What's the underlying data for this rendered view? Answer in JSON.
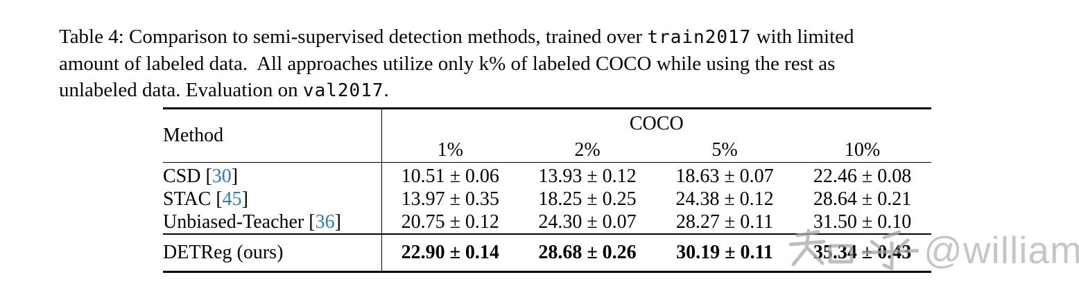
{
  "caption": {
    "line1": {
      "a": "Table 4: Comparison to semi-supervised detection methods, trained over ",
      "code": "train2017",
      "b": " with limited"
    },
    "line2": "amount of labeled data.  All approaches utilize only k% of labeled COCO while using the rest as",
    "line3": {
      "a": "unlabeled data. Evaluation on ",
      "code": "val2017",
      "b": "."
    }
  },
  "table": {
    "headers": {
      "method": "Method",
      "group": "COCO",
      "cols": [
        "1%",
        "2%",
        "5%",
        "10%"
      ]
    },
    "bracket_open": " [",
    "bracket_close": "]",
    "rows": [
      {
        "method": "CSD",
        "ref": "30",
        "values": [
          "10.51 ± 0.06",
          "13.93 ± 0.12",
          "18.63 ± 0.07",
          "22.46 ± 0.08"
        ]
      },
      {
        "method": "STAC",
        "ref": "45",
        "values": [
          "13.97 ± 0.35",
          "18.25 ± 0.25",
          "24.38 ± 0.12",
          "28.64 ± 0.21"
        ]
      },
      {
        "method": "Unbiased-Teacher",
        "ref": "36",
        "values": [
          "20.75 ± 0.12",
          "24.30 ± 0.07",
          "28.27 ± 0.11",
          "31.50 ± 0.10"
        ]
      }
    ],
    "ours_row": {
      "method": "DETReg (ours)",
      "values": [
        "22.90 ± 0.14",
        "28.68 ± 0.26",
        "30.19 ± 0.11",
        "35.34 ± 0.43"
      ]
    }
  },
  "watermark": {
    "text": "知乎@william",
    "latin": "@william"
  },
  "colors": {
    "citation_blue": "#2e7cb0",
    "watermark_gray": "#c6c6c6",
    "watermark_cjk_gray": "#a9a9a9"
  }
}
